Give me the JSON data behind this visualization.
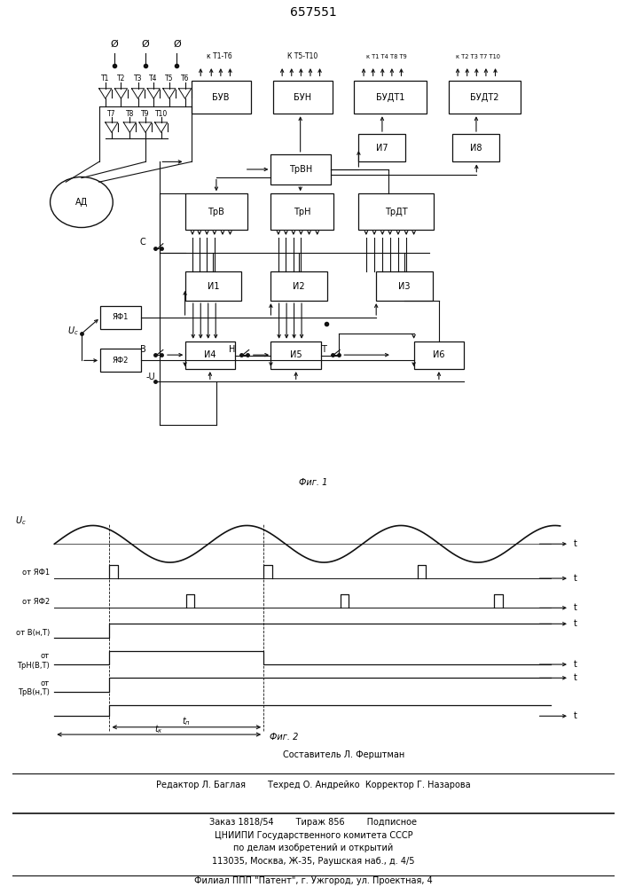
{
  "title": "657551",
  "title_fontsize": 10,
  "line_color": "#111111",
  "fig1_caption": "Фиг. 1",
  "fig2_caption": "Фиг. 2",
  "footer_lines": [
    "Составитель Л. Ферштман",
    "Редактор Л. Баглая        Техред О. Андрейко  Корректор Г. Назарова",
    "Заказ 1818/54        Тираж 856        Подписное",
    "ЦНИИПИ Государственного комитета СССР",
    "по делам изобретений и открытий",
    "113035, Москва, Ж-35, Раушская наб., д. 4/5",
    "Филиал ППП \"Патент\", г. Ужгород, ул. Проектная, 4"
  ]
}
